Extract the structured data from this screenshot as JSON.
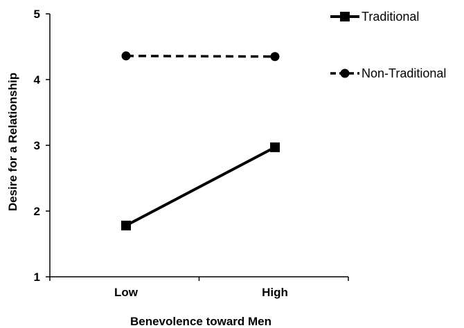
{
  "chart_data": {
    "type": "line",
    "categories": [
      "Low",
      "High"
    ],
    "xlabel": "Benevolence toward Men",
    "ylabel": "Desire for a Relationship",
    "ylim": [
      1,
      5
    ],
    "yticks": [
      1,
      2,
      3,
      4,
      5
    ],
    "grid": false,
    "legend_position": "top-right",
    "series": [
      {
        "name": "Traditional",
        "values": [
          1.78,
          2.97
        ],
        "marker": "square",
        "line_style": "solid",
        "color": "#000000"
      },
      {
        "name": "Non-Traditional",
        "values": [
          4.36,
          4.35
        ],
        "marker": "circle",
        "line_style": "dashed",
        "color": "#000000"
      }
    ]
  }
}
